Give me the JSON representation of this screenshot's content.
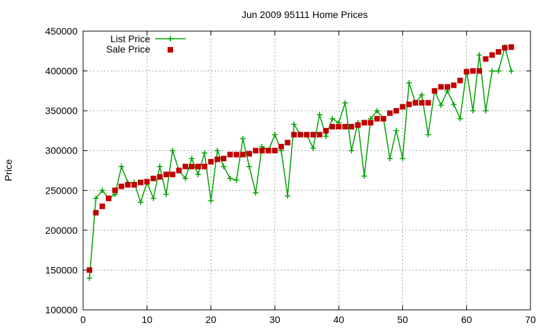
{
  "chart_data": {
    "type": "line",
    "title": "Jun 2009 95111 Home Prices",
    "xlabel": "",
    "ylabel": "Price",
    "xlim": [
      0,
      70
    ],
    "ylim": [
      100000,
      450000
    ],
    "xticks": [
      0,
      10,
      20,
      30,
      40,
      50,
      60,
      70
    ],
    "yticks": [
      100000,
      150000,
      200000,
      250000,
      300000,
      350000,
      400000,
      450000
    ],
    "grid": true,
    "legend_position": "top-left",
    "series": [
      {
        "name": "List Price",
        "style": "line-plus",
        "color": "#00a000",
        "x": [
          1,
          2,
          3,
          4,
          5,
          6,
          7,
          8,
          9,
          10,
          11,
          12,
          13,
          14,
          15,
          16,
          17,
          18,
          19,
          20,
          21,
          22,
          23,
          24,
          25,
          26,
          27,
          28,
          29,
          30,
          31,
          32,
          33,
          34,
          35,
          36,
          37,
          38,
          39,
          40,
          41,
          42,
          43,
          44,
          45,
          46,
          47,
          48,
          49,
          50,
          51,
          52,
          53,
          54,
          55,
          56,
          57,
          58,
          59,
          60,
          61,
          62,
          63,
          64,
          65,
          66,
          67
        ],
        "y": [
          140000,
          240000,
          250000,
          240000,
          245000,
          280000,
          260000,
          260000,
          235000,
          260000,
          240000,
          280000,
          245000,
          300000,
          275000,
          265000,
          290000,
          270000,
          297000,
          237000,
          300000,
          280000,
          265000,
          263000,
          315000,
          280000,
          247000,
          305000,
          300000,
          320000,
          300000,
          243000,
          333000,
          320000,
          320000,
          303000,
          345000,
          318000,
          340000,
          335000,
          360000,
          300000,
          335000,
          268000,
          340000,
          350000,
          340000,
          290000,
          325000,
          290000,
          385000,
          360000,
          370000,
          320000,
          375000,
          357000,
          375000,
          358000,
          340000,
          400000,
          350000,
          420000,
          350000,
          400000,
          400000,
          430000,
          400000
        ]
      },
      {
        "name": "Sale Price",
        "style": "square-points",
        "color": "#c00000",
        "x": [
          1,
          2,
          3,
          4,
          5,
          6,
          7,
          8,
          9,
          10,
          11,
          12,
          13,
          14,
          15,
          16,
          17,
          18,
          19,
          20,
          21,
          22,
          23,
          24,
          25,
          26,
          27,
          28,
          29,
          30,
          31,
          32,
          33,
          34,
          35,
          36,
          37,
          38,
          39,
          40,
          41,
          42,
          43,
          44,
          45,
          46,
          47,
          48,
          49,
          50,
          51,
          52,
          53,
          54,
          55,
          56,
          57,
          58,
          59,
          60,
          61,
          62,
          63,
          64,
          65,
          66,
          67
        ],
        "y": [
          150000,
          222000,
          230000,
          240000,
          250000,
          255000,
          257000,
          257000,
          260000,
          261000,
          265000,
          267000,
          270000,
          270000,
          275000,
          280000,
          280000,
          280000,
          280000,
          286000,
          289000,
          290000,
          295000,
          295000,
          295000,
          296000,
          300000,
          300000,
          300000,
          300000,
          305000,
          310000,
          320000,
          320000,
          320000,
          320000,
          320000,
          325000,
          330000,
          330000,
          330000,
          330000,
          332000,
          335000,
          335000,
          340000,
          340000,
          347000,
          350000,
          355000,
          358000,
          360000,
          360000,
          360000,
          375000,
          380000,
          380000,
          382000,
          388000,
          399000,
          400000,
          400000,
          415000,
          420000,
          424000,
          429000,
          430000
        ]
      }
    ]
  }
}
